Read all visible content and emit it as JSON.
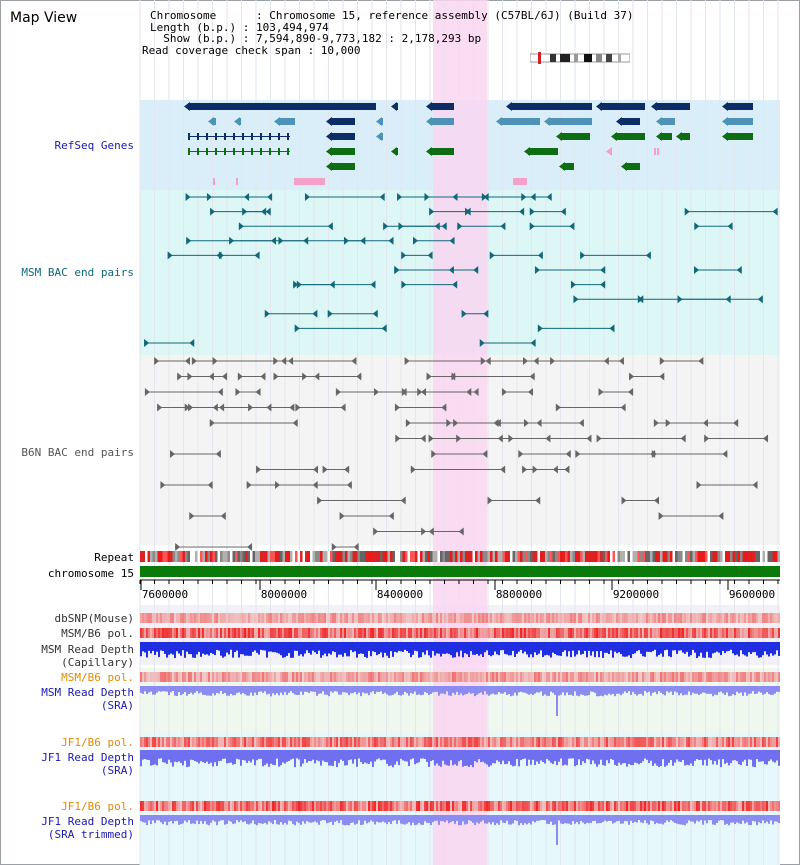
{
  "page_title": "Map View",
  "header": {
    "chromosome_label": "Chromosome      : Chromosome 15, reference assembly (C57BL/6J) (Build 37)",
    "length_label": "Length (b.p.) : 103,494,974",
    "show_label": "  Show (b.p.) : 7,594,890-9,773,182 : 2,178,293 bp",
    "coverage_label": "Read coverage check span : 10,000"
  },
  "tracks": {
    "refseq": "RefSeq Genes",
    "msm_bac": "MSM BAC end pairs",
    "b6n_bac": "B6N BAC end pairs",
    "repeat": "Repeat",
    "chromosome": "chromosome 15",
    "dbsnp": "dbSNP(Mouse)",
    "msm_pol": "MSM/B6 pol.",
    "msm_depth_cap_1": "MSM Read Depth",
    "msm_depth_cap_2": "(Capillary)",
    "msm_pol2": "MSM/B6 pol.",
    "msm_depth_sra_1": "MSM Read Depth",
    "msm_depth_sra_2": "(SRA)",
    "jf1_pol": "JF1/B6 pol.",
    "jf1_depth_1": "JF1 Read Depth",
    "jf1_depth_2": "(SRA)",
    "jf1_pol2": "JF1/B6 pol.",
    "jf1_trim_1": "JF1 Read Depth",
    "jf1_trim_2": "(SRA trimmed)"
  },
  "axis": {
    "ticks": [
      "7600000",
      "8000000",
      "8400000",
      "8800000",
      "9200000",
      "9600000"
    ]
  },
  "colors": {
    "refseq_bg": "#daeefa",
    "msm_bg": "#ddf6f6",
    "b6n_bg": "#f4f4f4",
    "highlight": "#f9d6f1",
    "navy": "#0d2d66",
    "steel": "#4f92b8",
    "green": "#0e6c12",
    "teal": "#10687a",
    "gray_pair": "#666666",
    "label_blue": "#1a1aaa",
    "label_teal": "#10687a",
    "label_orange": "#e08c00"
  }
}
